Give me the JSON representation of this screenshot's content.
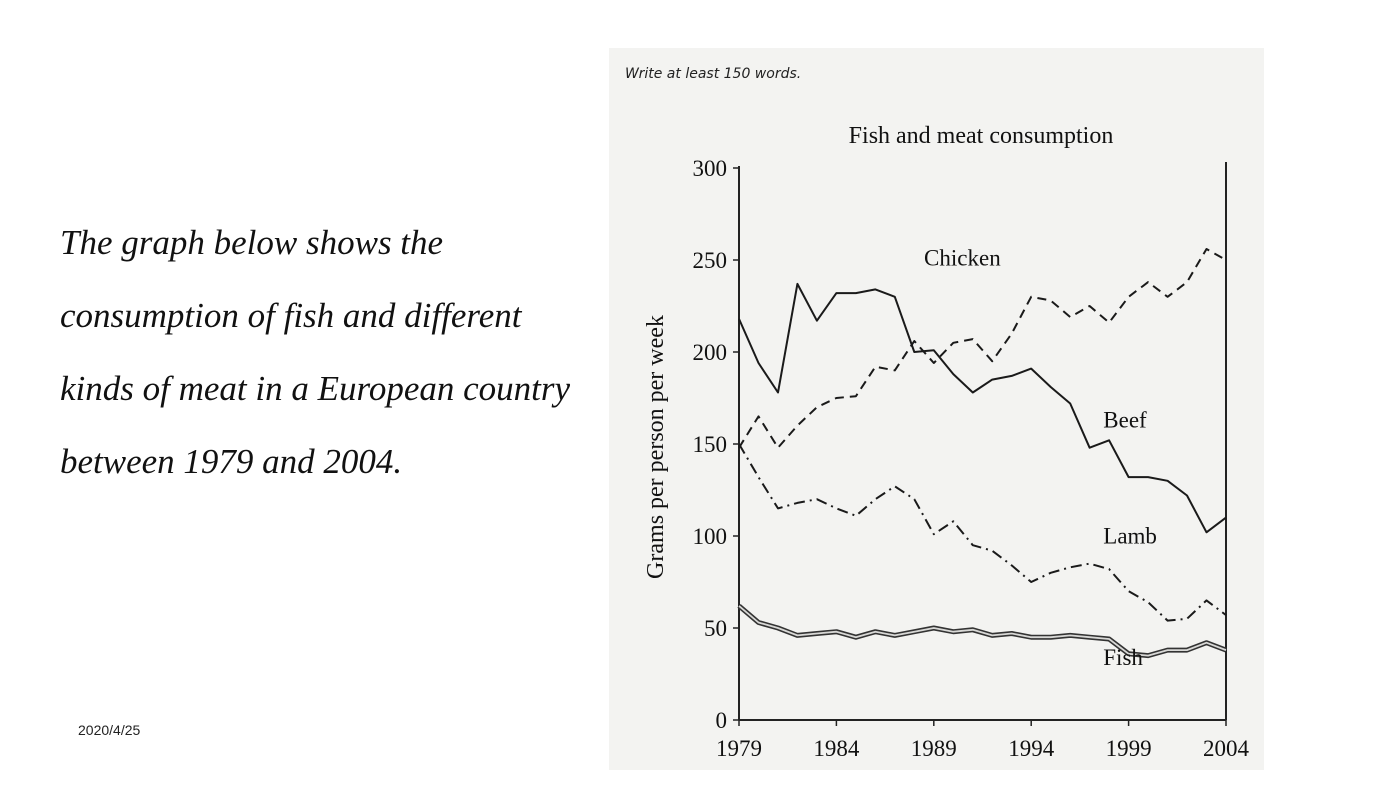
{
  "slide": {
    "lines": [
      "The graph below shows the",
      "consumption of fish and different",
      "kinds of meat in a European country",
      "between 1979 and 2004."
    ],
    "date": "2020/4/25"
  },
  "figure": {
    "instruction": "Write at least 150 words."
  },
  "chart_data": {
    "type": "line",
    "title": "Fish and meat consumption",
    "xlabel": "",
    "ylabel": "Grams per person per week",
    "xlim": [
      1979,
      2004
    ],
    "ylim": [
      0,
      300
    ],
    "xticks": [
      1979,
      1984,
      1989,
      1994,
      1999,
      2004
    ],
    "yticks": [
      0,
      50,
      100,
      150,
      200,
      250,
      300
    ],
    "grid": false,
    "legend": "inline labels",
    "x": [
      1979,
      1980,
      1981,
      1982,
      1983,
      1984,
      1985,
      1986,
      1987,
      1988,
      1989,
      1990,
      1991,
      1992,
      1993,
      1994,
      1995,
      1996,
      1997,
      1998,
      1999,
      2000,
      2001,
      2002,
      2003,
      2004
    ],
    "series": [
      {
        "name": "Chicken",
        "style": "dashed",
        "label_x": 1988.5,
        "label_y": 247,
        "values": [
          148,
          165,
          148,
          160,
          170,
          175,
          176,
          192,
          190,
          206,
          194,
          205,
          207,
          195,
          210,
          230,
          228,
          219,
          225,
          216,
          230,
          238,
          230,
          238,
          256,
          250
        ]
      },
      {
        "name": "Beef",
        "style": "solid",
        "label_x": 1997.7,
        "label_y": 159,
        "values": [
          218,
          194,
          178,
          237,
          217,
          232,
          232,
          234,
          230,
          200,
          201,
          188,
          178,
          185,
          187,
          191,
          181,
          172,
          148,
          152,
          132,
          132,
          130,
          122,
          102,
          110
        ]
      },
      {
        "name": "Lamb",
        "style": "dashdot",
        "label_x": 1997.7,
        "label_y": 96,
        "values": [
          150,
          132,
          115,
          118,
          120,
          115,
          111,
          120,
          127,
          120,
          101,
          108,
          95,
          92,
          84,
          75,
          80,
          83,
          85,
          82,
          70,
          64,
          54,
          55,
          65,
          57
        ]
      },
      {
        "name": "Fish",
        "style": "double",
        "label_x": 1997.7,
        "label_y": 30,
        "values": [
          62,
          53,
          50,
          46,
          47,
          48,
          45,
          48,
          46,
          48,
          50,
          48,
          49,
          46,
          47,
          45,
          45,
          46,
          45,
          44,
          36,
          35,
          38,
          38,
          42,
          38
        ]
      }
    ]
  }
}
